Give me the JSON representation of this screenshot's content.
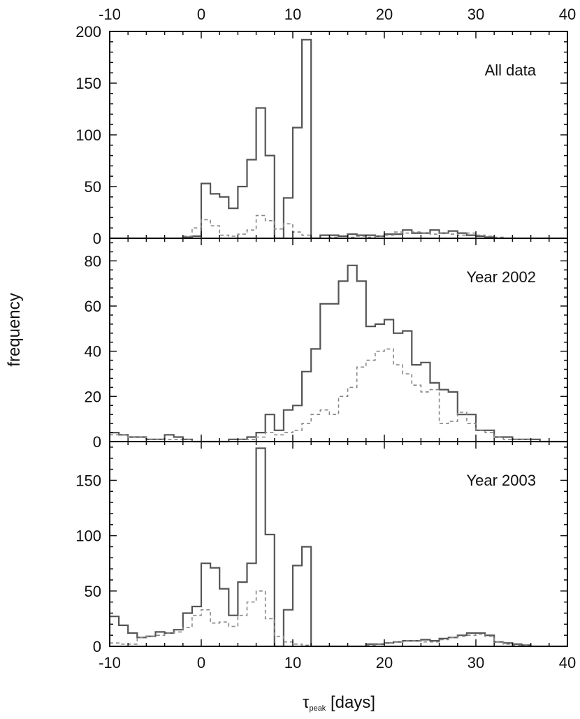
{
  "figure": {
    "ylabel": "frequency",
    "xlabel": "τ",
    "xlabel_sub": "peak",
    "xlabel_unit": " [days]"
  },
  "style": {
    "solid": "#555555",
    "dashed": "#888888",
    "frame": "#111111"
  },
  "chart_data": [
    {
      "type": "histogram",
      "panel": "top",
      "label": "All data",
      "xlim": [
        -10,
        40
      ],
      "ylim": [
        0,
        200
      ],
      "x_ticks": [
        -10,
        0,
        10,
        20,
        30,
        40
      ],
      "y_ticks": [
        0,
        50,
        100,
        150,
        200
      ],
      "bin_width": 1,
      "bin_start": -10,
      "series": [
        {
          "style": "solid",
          "values": [
            0,
            0,
            0,
            0,
            0,
            0,
            0,
            0,
            1,
            2,
            53,
            43,
            40,
            29,
            50,
            76,
            126,
            80,
            0,
            39,
            107,
            192,
            0,
            3,
            3,
            2,
            4,
            3,
            3,
            2,
            4,
            4,
            8,
            5,
            5,
            8,
            5,
            7,
            5,
            3,
            2,
            1,
            0,
            0,
            0,
            0,
            0,
            0,
            0,
            0
          ]
        },
        {
          "style": "dashed",
          "values": [
            0,
            0,
            0,
            0,
            0,
            0,
            0,
            0,
            2,
            10,
            18,
            12,
            3,
            2,
            4,
            8,
            22,
            17,
            9,
            14,
            6,
            3,
            0,
            0,
            1,
            0,
            1,
            2,
            1,
            2,
            3,
            6,
            5,
            6,
            5,
            4,
            5,
            4,
            3,
            5,
            3,
            2,
            1,
            0,
            0,
            0,
            0,
            0,
            0,
            0
          ]
        }
      ]
    },
    {
      "type": "histogram",
      "panel": "middle",
      "label": "Year 2002",
      "xlim": [
        -10,
        40
      ],
      "ylim": [
        0,
        90
      ],
      "x_ticks": [
        -10,
        0,
        10,
        20,
        30,
        40
      ],
      "y_ticks": [
        0,
        20,
        40,
        60,
        80
      ],
      "bin_width": 1,
      "bin_start": -10,
      "series": [
        {
          "style": "solid",
          "values": [
            4,
            3,
            2,
            2,
            1,
            1,
            3,
            2,
            1,
            0,
            0,
            0,
            0,
            1,
            1,
            2,
            4,
            12,
            5,
            14,
            16,
            31,
            41,
            61,
            61,
            71,
            78,
            71,
            51,
            52,
            54,
            48,
            49,
            34,
            35,
            26,
            23,
            22,
            12,
            12,
            5,
            5,
            2,
            2,
            1,
            1,
            1,
            0,
            0,
            0
          ]
        },
        {
          "style": "dashed",
          "values": [
            3,
            3,
            2,
            2,
            1,
            1,
            1,
            1,
            1,
            0,
            0,
            0,
            0,
            0,
            1,
            1,
            2,
            4,
            3,
            4,
            5,
            8,
            12,
            14,
            12,
            20,
            24,
            33,
            36,
            40,
            41,
            34,
            30,
            25,
            22,
            23,
            8,
            9,
            13,
            8,
            5,
            4,
            2,
            1,
            1,
            1,
            0,
            0,
            0,
            0
          ]
        }
      ]
    },
    {
      "type": "histogram",
      "panel": "bottom",
      "label": "Year 2003",
      "xlim": [
        -10,
        40
      ],
      "ylim": [
        0,
        185
      ],
      "x_ticks": [
        -10,
        0,
        10,
        20,
        30,
        40
      ],
      "y_ticks": [
        0,
        50,
        100,
        150
      ],
      "bin_width": 1,
      "bin_start": -10,
      "series": [
        {
          "style": "solid",
          "values": [
            27,
            19,
            12,
            8,
            9,
            13,
            12,
            15,
            30,
            36,
            75,
            71,
            52,
            28,
            58,
            75,
            179,
            101,
            0,
            33,
            73,
            90,
            0,
            0,
            0,
            0,
            0,
            0,
            2,
            2,
            3,
            4,
            5,
            5,
            6,
            5,
            7,
            8,
            10,
            12,
            12,
            10,
            4,
            3,
            2,
            1,
            0,
            0,
            0,
            0
          ]
        },
        {
          "style": "dashed",
          "values": [
            3,
            2,
            2,
            8,
            9,
            10,
            12,
            13,
            17,
            28,
            33,
            21,
            22,
            18,
            28,
            40,
            50,
            25,
            9,
            4,
            2,
            1,
            0,
            0,
            0,
            0,
            0,
            0,
            1,
            2,
            3,
            4,
            5,
            5,
            4,
            4,
            6,
            8,
            9,
            10,
            11,
            9,
            4,
            2,
            1,
            1,
            0,
            0,
            0,
            0
          ]
        }
      ]
    }
  ]
}
